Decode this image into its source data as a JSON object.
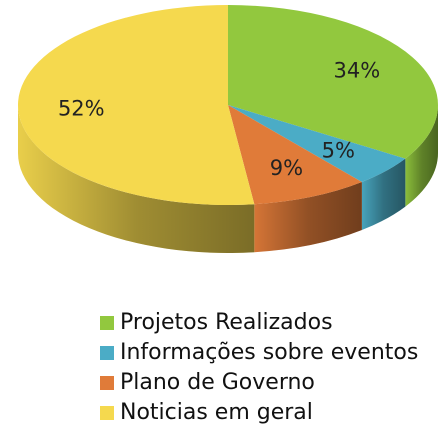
{
  "chart_data": {
    "type": "pie",
    "categories": [
      "Projetos Realizados",
      "Informações sobre eventos",
      "Plano de Governo",
      "Noticias em geral"
    ],
    "values": [
      34,
      5,
      9,
      52
    ],
    "value_labels": [
      "34%",
      "5%",
      "9%",
      "52%"
    ],
    "colors": [
      "#92c83e",
      "#4bacc6",
      "#e07b39",
      "#f5d94e"
    ],
    "legend": "bottom"
  }
}
